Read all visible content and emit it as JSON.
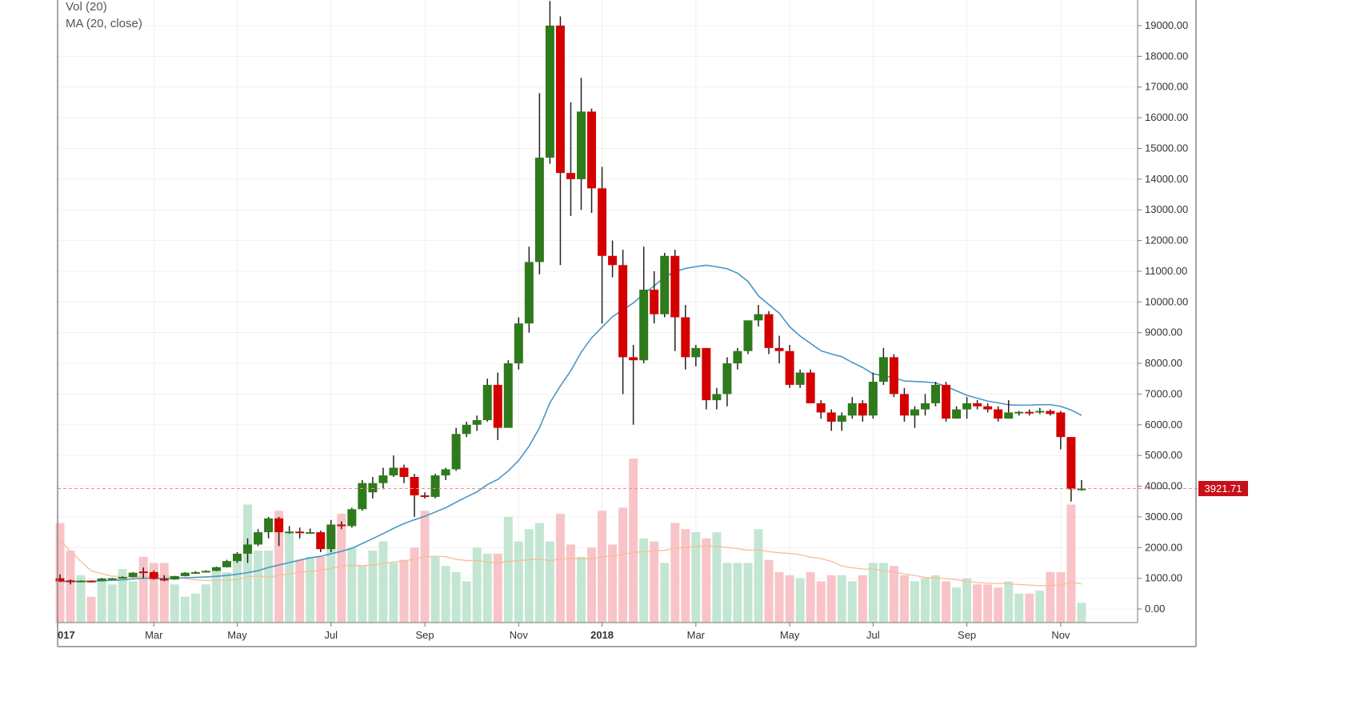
{
  "chart_data": {
    "type": "candlestick",
    "title": "",
    "legend": [
      "Vol (20)",
      "MA (20, close)"
    ],
    "legend_placement": "top-left",
    "interval": "weekly",
    "ylim": [
      0,
      20000
    ],
    "y_ticks": [
      0,
      1000,
      2000,
      3000,
      4000,
      5000,
      6000,
      7000,
      8000,
      9000,
      10000,
      11000,
      12000,
      13000,
      14000,
      15000,
      16000,
      17000,
      18000,
      19000
    ],
    "y_tick_labels": [
      "0.00",
      "1000.00",
      "2000.00",
      "3000.00",
      "4000.00",
      "5000.00",
      "6000.00",
      "7000.00",
      "8000.00",
      "9000.00",
      "10000.00",
      "11000.00",
      "12000.00",
      "13000.00",
      "14000.00",
      "15000.00",
      "16000.00",
      "17000.00",
      "18000.00",
      "19000.00"
    ],
    "x_ticks": [
      {
        "label": "017",
        "index": 0,
        "bold": true
      },
      {
        "label": "Mar",
        "index": 9
      },
      {
        "label": "May",
        "index": 17
      },
      {
        "label": "Jul",
        "index": 26
      },
      {
        "label": "Sep",
        "index": 35
      },
      {
        "label": "Nov",
        "index": 44
      },
      {
        "label": "2018",
        "index": 52,
        "bold": true
      },
      {
        "label": "Mar",
        "index": 61
      },
      {
        "label": "May",
        "index": 70
      },
      {
        "label": "Jul",
        "index": 78
      },
      {
        "label": "Sep",
        "index": 87
      },
      {
        "label": "Nov",
        "index": 96
      }
    ],
    "last_price": 3921.71,
    "last_price_label": "3921.71",
    "ma_period": 20,
    "candles_ohlc": [
      [
        1000,
        1130,
        880,
        900
      ],
      [
        930,
        960,
        800,
        880
      ],
      [
        880,
        930,
        870,
        920
      ],
      [
        920,
        930,
        900,
        910
      ],
      [
        910,
        1010,
        900,
        990
      ],
      [
        990,
        1010,
        970,
        1000
      ],
      [
        1000,
        1060,
        990,
        1040
      ],
      [
        1040,
        1200,
        1030,
        1180
      ],
      [
        1220,
        1350,
        1000,
        1200
      ],
      [
        1200,
        1250,
        950,
        980
      ],
      [
        980,
        1100,
        900,
        960
      ],
      [
        960,
        1080,
        950,
        1070
      ],
      [
        1070,
        1200,
        1060,
        1180
      ],
      [
        1180,
        1230,
        1170,
        1200
      ],
      [
        1200,
        1260,
        1190,
        1240
      ],
      [
        1240,
        1380,
        1230,
        1360
      ],
      [
        1360,
        1600,
        1350,
        1560
      ],
      [
        1560,
        1850,
        1500,
        1800
      ],
      [
        1800,
        2300,
        1500,
        2100
      ],
      [
        2100,
        2600,
        2050,
        2500
      ],
      [
        2500,
        3000,
        2300,
        2950
      ],
      [
        2950,
        3000,
        2050,
        2500
      ],
      [
        2500,
        2700,
        2450,
        2520
      ],
      [
        2520,
        2650,
        2300,
        2500
      ],
      [
        2500,
        2620,
        2450,
        2500
      ],
      [
        2500,
        2550,
        1850,
        1950
      ],
      [
        1950,
        2900,
        1850,
        2750
      ],
      [
        2750,
        2850,
        2600,
        2700
      ],
      [
        2700,
        3300,
        2650,
        3250
      ],
      [
        3250,
        4200,
        3200,
        4100
      ],
      [
        3800,
        4300,
        3600,
        4100
      ],
      [
        4100,
        4600,
        3900,
        4350
      ],
      [
        4350,
        5000,
        4300,
        4600
      ],
      [
        4600,
        4700,
        4100,
        4300
      ],
      [
        4300,
        4400,
        3000,
        3700
      ],
      [
        3700,
        3800,
        3600,
        3650
      ],
      [
        3650,
        4400,
        3600,
        4350
      ],
      [
        4350,
        4600,
        4200,
        4550
      ],
      [
        4550,
        5900,
        4500,
        5700
      ],
      [
        5700,
        6100,
        5600,
        6000
      ],
      [
        6000,
        6300,
        5800,
        6150
      ],
      [
        6150,
        7500,
        6100,
        7300
      ],
      [
        7300,
        7700,
        5500,
        5900
      ],
      [
        5900,
        8100,
        5900,
        8000
      ],
      [
        8000,
        9500,
        7800,
        9300
      ],
      [
        9300,
        11800,
        9000,
        11300
      ],
      [
        11300,
        16800,
        10900,
        14700
      ],
      [
        14700,
        19800,
        14500,
        19000
      ],
      [
        19000,
        19300,
        11200,
        14200
      ],
      [
        14200,
        16500,
        12800,
        14000
      ],
      [
        14000,
        17300,
        13000,
        16200
      ],
      [
        16200,
        16300,
        12900,
        13700
      ],
      [
        13700,
        14400,
        9300,
        11500
      ],
      [
        11500,
        12000,
        10800,
        11200
      ],
      [
        11200,
        11700,
        7000,
        8200
      ],
      [
        8200,
        8600,
        6000,
        8100
      ],
      [
        8100,
        11800,
        8000,
        10400
      ],
      [
        10400,
        11000,
        9300,
        9600
      ],
      [
        9600,
        11600,
        9500,
        11500
      ],
      [
        11500,
        11700,
        8400,
        9500
      ],
      [
        9500,
        9900,
        7800,
        8200
      ],
      [
        8200,
        8600,
        7900,
        8500
      ],
      [
        8500,
        8500,
        6500,
        6800
      ],
      [
        6800,
        7200,
        6500,
        7000
      ],
      [
        7000,
        8200,
        6600,
        8000
      ],
      [
        8000,
        8500,
        7800,
        8400
      ],
      [
        8400,
        9400,
        8300,
        9400
      ],
      [
        9400,
        9900,
        9200,
        9600
      ],
      [
        9600,
        9700,
        8300,
        8500
      ],
      [
        8500,
        8900,
        8000,
        8400
      ],
      [
        8400,
        8600,
        7200,
        7300
      ],
      [
        7300,
        7800,
        7200,
        7700
      ],
      [
        7700,
        7800,
        6700,
        6700
      ],
      [
        6700,
        6800,
        6200,
        6400
      ],
      [
        6400,
        6500,
        5800,
        6100
      ],
      [
        6100,
        6400,
        5800,
        6300
      ],
      [
        6300,
        6900,
        6200,
        6700
      ],
      [
        6700,
        6800,
        6100,
        6300
      ],
      [
        6300,
        7700,
        6200,
        7400
      ],
      [
        7400,
        8500,
        7300,
        8200
      ],
      [
        8200,
        8300,
        6900,
        7000
      ],
      [
        7000,
        7200,
        6100,
        6300
      ],
      [
        6300,
        6600,
        5900,
        6500
      ],
      [
        6500,
        7000,
        6300,
        6700
      ],
      [
        6700,
        7400,
        6600,
        7300
      ],
      [
        7300,
        7400,
        6100,
        6200
      ],
      [
        6200,
        6600,
        6200,
        6500
      ],
      [
        6500,
        6900,
        6200,
        6700
      ],
      [
        6700,
        6800,
        6500,
        6600
      ],
      [
        6600,
        6700,
        6400,
        6500
      ],
      [
        6500,
        6600,
        6100,
        6200
      ],
      [
        6200,
        6800,
        6200,
        6400
      ],
      [
        6400,
        6450,
        6300,
        6420
      ],
      [
        6420,
        6500,
        6300,
        6400
      ],
      [
        6400,
        6550,
        6350,
        6450
      ],
      [
        6450,
        6500,
        6300,
        6350
      ],
      [
        6400,
        6450,
        5200,
        5600
      ],
      [
        5600,
        5600,
        3500,
        3900
      ],
      [
        3900,
        4200,
        3850,
        3921.71
      ]
    ],
    "volume_axis_units": [
      2800,
      1900,
      1100,
      400,
      1000,
      800,
      1300,
      900,
      1700,
      1500,
      1500,
      800,
      400,
      500,
      800,
      1300,
      1200,
      1700,
      3400,
      1900,
      1900,
      3200,
      2500,
      1600,
      1700,
      1700,
      2700,
      3100,
      2000,
      1400,
      1900,
      2200,
      1500,
      1600,
      2000,
      3200,
      1700,
      1400,
      1200,
      900,
      2000,
      1800,
      1800,
      3000,
      2200,
      2600,
      2800,
      2200,
      3100,
      2100,
      1700,
      2000,
      3200,
      2100,
      3300,
      4900,
      2300,
      2200,
      1500,
      2800,
      2600,
      2500,
      2300,
      2500,
      1500,
      1500,
      1500,
      2600,
      1600,
      1200,
      1100,
      1000,
      1200,
      900,
      1100,
      1100,
      900,
      1100,
      1500,
      1500,
      1400,
      1100,
      900,
      1000,
      1100,
      900,
      700,
      1000,
      800,
      800,
      700,
      900,
      500,
      500,
      600,
      1200,
      1200,
      3400,
      200
    ],
    "colors": {
      "up": "#2e7a1c",
      "down": "#d40000",
      "volume_up": "#c3e6d3",
      "volume_down": "#f8c4c8",
      "ma": "#4a97c4",
      "volume_ma": "#f9bd95",
      "price_line": "#f28c8c",
      "price_label_bg": "#c8101a"
    }
  }
}
